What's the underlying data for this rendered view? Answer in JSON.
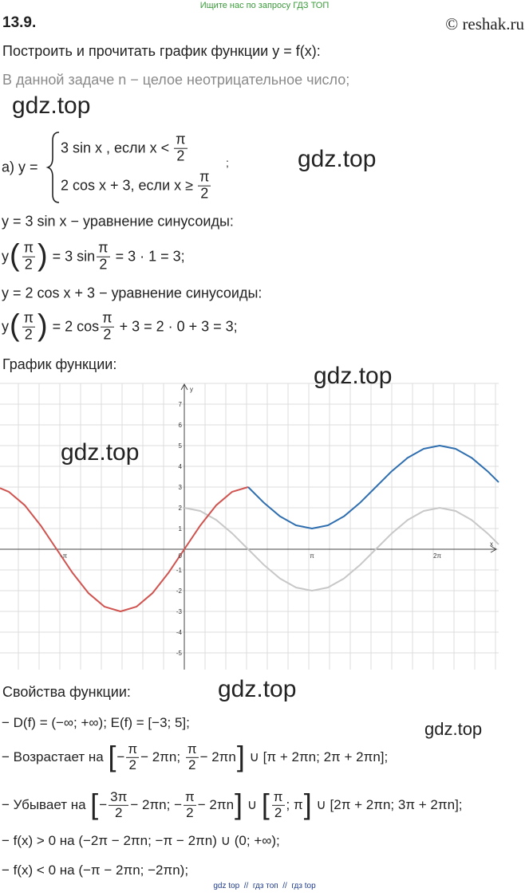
{
  "header": {
    "banner": "Ищите нас по запросу ГДЗ ТОП",
    "number": "13.9.",
    "site": "© reshak.ru"
  },
  "task": "Построить и прочитать график функции y = f(x):",
  "note": "В данной задаче n − целое неотрицательное число;",
  "watermarks": [
    "gdz.top",
    "gdz.top",
    "gdz.top",
    "gdz.top",
    "gdz.top",
    "gdz.top"
  ],
  "part_a": {
    "label": "а) y =",
    "cases": [
      {
        "expr": "3 sin x , если x <",
        "num": "π",
        "den": "2"
      },
      {
        "expr": "2 cos x + 3, если x ≥",
        "num": "π",
        "den": "2"
      }
    ],
    "end": ";"
  },
  "steps": [
    {
      "parts": [
        "y = 3 sin x − уравнение синусоиды:"
      ]
    },
    {
      "parts": [
        "y",
        "(",
        {
          "num": "π",
          "den": "2"
        },
        ")",
        " = 3 sin",
        {
          "num": "π",
          "den": "2"
        },
        " = 3 · 1 = 3;"
      ]
    },
    {
      "parts": [
        "y = 2 cos x + 3 − уравнение синусоиды:"
      ]
    },
    {
      "parts": [
        "y",
        "(",
        {
          "num": "π",
          "den": "2"
        },
        ")",
        " = 2 cos",
        {
          "num": "π",
          "den": "2"
        },
        " + 3 = 2 · 0 + 3 = 3;"
      ]
    }
  ],
  "graph_title": "График функции:",
  "graph": {
    "x_label": "x",
    "y_label": "y",
    "origin": "0",
    "y_ticks": [
      "7",
      "6",
      "5",
      "4",
      "3",
      "2",
      "1",
      "-1",
      "-2",
      "-3",
      "-4",
      "-5"
    ],
    "x_ticks": [
      "-π",
      "π",
      "2π"
    ]
  },
  "properties_title": "Свойства функции:",
  "properties": [
    {
      "parts": [
        "− D(f) = (−∞; +∞); E(f) = [−3; 5];"
      ]
    },
    {
      "parts": [
        "− Возрастает на ",
        "[",
        "−",
        {
          "num": "π",
          "den": "2"
        },
        "− 2πn; ",
        {
          "num": "π",
          "den": "2"
        },
        "− 2πn",
        "]",
        " ∪ [π + 2πn; 2π + 2πn];"
      ]
    },
    {
      "parts": [
        "− Убывает на ",
        "[",
        "−",
        {
          "num": "3π",
          "den": "2"
        },
        "− 2πn; −",
        {
          "num": "π",
          "den": "2"
        },
        "− 2πn",
        "]",
        " ∪ ",
        "[",
        {
          "num": "π",
          "den": "2"
        },
        "; π",
        "]",
        " ∪ [2π + 2πn; 3π + 2πn];"
      ]
    },
    {
      "parts": [
        "− f(x) > 0 на (−2π − 2πn; −π − 2πn) ∪ (0; +∞);"
      ]
    },
    {
      "parts": [
        "− f(x) < 0 на (−π − 2πn; −2πn);"
      ]
    }
  ],
  "footer": "gdz top  //  гдз топ  //  гдз top"
}
